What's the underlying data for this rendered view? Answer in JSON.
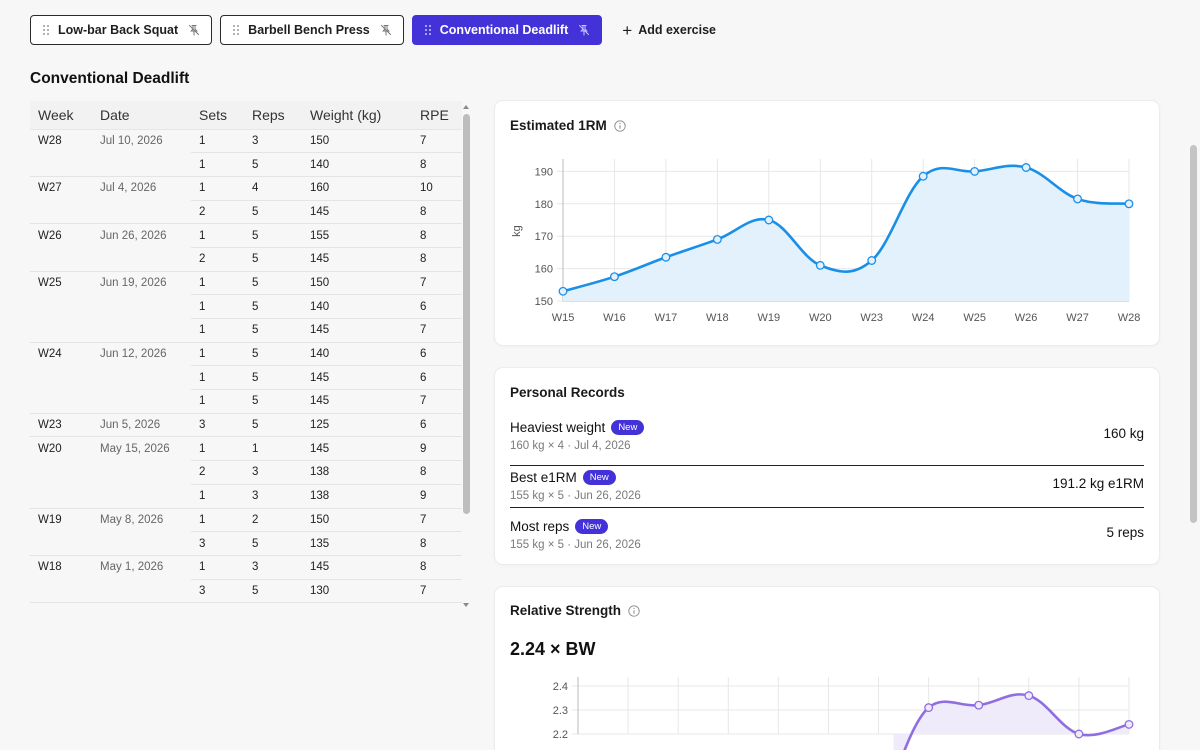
{
  "tabs": [
    {
      "label": "Low-bar Back Squat",
      "active": false
    },
    {
      "label": "Barbell Bench Press",
      "active": false
    },
    {
      "label": "Conventional Deadlift",
      "active": true
    }
  ],
  "add_exercise_label": "Add exercise",
  "section_title": "Conventional Deadlift",
  "table": {
    "headers": {
      "week": "Week",
      "date": "Date",
      "sets": "Sets",
      "reps": "Reps",
      "weight": "Weight (kg)",
      "rpe": "RPE"
    },
    "groups": [
      {
        "week": "W28",
        "date": "Jul 10, 2026",
        "rows": [
          {
            "sets": "1",
            "reps": "3",
            "weight": "150",
            "rpe": "7"
          },
          {
            "sets": "1",
            "reps": "5",
            "weight": "140",
            "rpe": "8"
          }
        ]
      },
      {
        "week": "W27",
        "date": "Jul 4, 2026",
        "rows": [
          {
            "sets": "1",
            "reps": "4",
            "weight": "160",
            "rpe": "10"
          },
          {
            "sets": "2",
            "reps": "5",
            "weight": "145",
            "rpe": "8"
          }
        ]
      },
      {
        "week": "W26",
        "date": "Jun 26, 2026",
        "rows": [
          {
            "sets": "1",
            "reps": "5",
            "weight": "155",
            "rpe": "8"
          },
          {
            "sets": "2",
            "reps": "5",
            "weight": "145",
            "rpe": "8"
          }
        ]
      },
      {
        "week": "W25",
        "date": "Jun 19, 2026",
        "rows": [
          {
            "sets": "1",
            "reps": "5",
            "weight": "150",
            "rpe": "7"
          },
          {
            "sets": "1",
            "reps": "5",
            "weight": "140",
            "rpe": "6"
          },
          {
            "sets": "1",
            "reps": "5",
            "weight": "145",
            "rpe": "7"
          }
        ]
      },
      {
        "week": "W24",
        "date": "Jun 12, 2026",
        "rows": [
          {
            "sets": "1",
            "reps": "5",
            "weight": "140",
            "rpe": "6"
          },
          {
            "sets": "1",
            "reps": "5",
            "weight": "145",
            "rpe": "6"
          },
          {
            "sets": "1",
            "reps": "5",
            "weight": "145",
            "rpe": "7"
          }
        ]
      },
      {
        "week": "W23",
        "date": "Jun 5, 2026",
        "rows": [
          {
            "sets": "3",
            "reps": "5",
            "weight": "125",
            "rpe": "6"
          }
        ]
      },
      {
        "week": "W20",
        "date": "May 15, 2026",
        "rows": [
          {
            "sets": "1",
            "reps": "1",
            "weight": "145",
            "rpe": "9"
          },
          {
            "sets": "2",
            "reps": "3",
            "weight": "138",
            "rpe": "8"
          },
          {
            "sets": "1",
            "reps": "3",
            "weight": "138",
            "rpe": "9"
          }
        ]
      },
      {
        "week": "W19",
        "date": "May 8, 2026",
        "rows": [
          {
            "sets": "1",
            "reps": "2",
            "weight": "150",
            "rpe": "7"
          },
          {
            "sets": "3",
            "reps": "5",
            "weight": "135",
            "rpe": "8"
          }
        ]
      },
      {
        "week": "W18",
        "date": "May 1, 2026",
        "rows": [
          {
            "sets": "1",
            "reps": "3",
            "weight": "145",
            "rpe": "8"
          },
          {
            "sets": "3",
            "reps": "5",
            "weight": "130",
            "rpe": "7"
          }
        ]
      }
    ]
  },
  "cards": {
    "e1rm": {
      "title": "Estimated 1RM"
    },
    "records": {
      "title": "Personal Records",
      "items": [
        {
          "label": "Heaviest weight",
          "badge": "New",
          "sub": "160 kg × 4 · Jul 4, 2026",
          "value": "160 kg"
        },
        {
          "label": "Best e1RM",
          "badge": "New",
          "sub": "155 kg × 5 · Jun 26, 2026",
          "value": "191.2 kg e1RM"
        },
        {
          "label": "Most reps",
          "badge": "New",
          "sub": "155 kg × 5 · Jun 26, 2026",
          "value": "5 reps"
        }
      ]
    },
    "relative": {
      "title": "Relative Strength",
      "value": "2.24 × BW"
    }
  },
  "colors": {
    "accent": "#4432d9",
    "e1rm_line": "#1a8fe8",
    "e1rm_fill": "#e3f1fd",
    "rel_line": "#8f6ee0",
    "rel_fill": "#f0ebfb"
  },
  "chart_data": [
    {
      "type": "line",
      "title": "Estimated 1RM",
      "ylabel": "kg",
      "x": [
        "W15",
        "W16",
        "W17",
        "W18",
        "W19",
        "W20",
        "W23",
        "W24",
        "W25",
        "W26",
        "W27",
        "W28"
      ],
      "y": [
        153,
        157.5,
        163.5,
        169,
        175,
        161,
        162.5,
        188.5,
        190,
        191.2,
        181.5,
        180
      ],
      "ylim": [
        150,
        195
      ],
      "yticks": [
        150,
        160,
        170,
        180,
        190
      ],
      "grid": true,
      "area": true
    },
    {
      "type": "line",
      "title": "Relative Strength",
      "ylabel": "",
      "x": [
        "W15",
        "W16",
        "W17",
        "W18",
        "W19",
        "W20",
        "W23",
        "W24",
        "W25",
        "W26",
        "W27",
        "W28"
      ],
      "y": [
        null,
        null,
        null,
        null,
        null,
        null,
        null,
        2.31,
        2.32,
        2.36,
        2.2,
        2.24
      ],
      "visible_from_index": 6,
      "yticks": [
        2.2,
        2.3,
        2.4
      ],
      "grid": true,
      "area": true
    }
  ]
}
